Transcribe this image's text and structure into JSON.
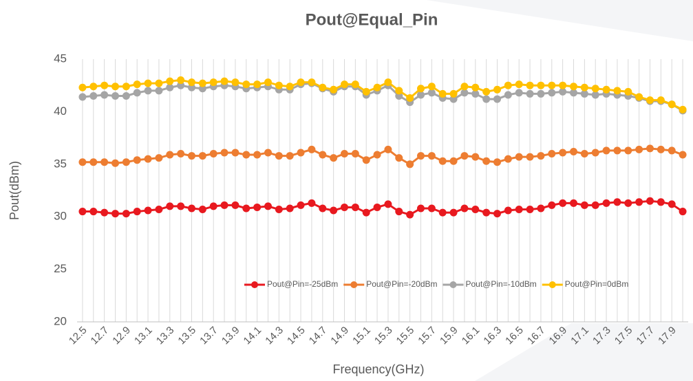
{
  "chart_data": {
    "type": "line",
    "title": "Pout@Equal_Pin",
    "x_label": "Frequency(GHz)",
    "y_label": "Pout(dBm)",
    "categories": [
      "12.5",
      null,
      "12.7",
      null,
      "12.9",
      null,
      "13.1",
      null,
      "13.3",
      null,
      "13.5",
      null,
      "13.7",
      null,
      "13.9",
      null,
      "14.1",
      null,
      "14.3",
      null,
      "14.5",
      null,
      "14.7",
      null,
      "14.9",
      null,
      "15.1",
      null,
      "15.3",
      null,
      "15.5",
      null,
      "15.7",
      null,
      "15.9",
      null,
      "16.1",
      null,
      "16.3",
      null,
      "16.5",
      null,
      "16.7",
      null,
      "16.9",
      null,
      "17.1",
      null,
      "17.3",
      null,
      "17.5",
      null,
      "17.7",
      null,
      "17.9",
      null
    ],
    "ylim": [
      20,
      45
    ],
    "yticks": [
      20,
      25,
      30,
      35,
      40,
      45
    ],
    "legend": "lower right",
    "series": [
      {
        "name": "Pout@Pin=-25dBm",
        "color": "#e8191f",
        "values": [
          30.5,
          30.5,
          30.4,
          30.3,
          30.3,
          30.5,
          30.6,
          30.7,
          31.0,
          31.0,
          30.8,
          30.7,
          31.0,
          31.1,
          31.1,
          30.8,
          30.9,
          31.0,
          30.7,
          30.8,
          31.1,
          31.3,
          30.8,
          30.6,
          30.9,
          30.9,
          30.4,
          30.9,
          31.2,
          30.5,
          30.2,
          30.8,
          30.8,
          30.4,
          30.4,
          30.8,
          30.7,
          30.4,
          30.3,
          30.6,
          30.7,
          30.7,
          30.8,
          31.1,
          31.3,
          31.3,
          31.1,
          31.1,
          31.3,
          31.4,
          31.3,
          31.4,
          31.5,
          31.4,
          31.2,
          30.5
        ]
      },
      {
        "name": "Pout@Pin=-20dBm",
        "color": "#ed7d31",
        "values": [
          35.2,
          35.2,
          35.2,
          35.1,
          35.2,
          35.4,
          35.5,
          35.6,
          35.9,
          36.0,
          35.8,
          35.8,
          36.0,
          36.1,
          36.1,
          35.9,
          35.9,
          36.1,
          35.8,
          35.8,
          36.1,
          36.4,
          35.9,
          35.6,
          36.0,
          36.0,
          35.4,
          35.9,
          36.4,
          35.6,
          35.0,
          35.8,
          35.8,
          35.3,
          35.3,
          35.8,
          35.7,
          35.3,
          35.2,
          35.5,
          35.7,
          35.7,
          35.8,
          36.0,
          36.1,
          36.2,
          36.0,
          36.1,
          36.3,
          36.3,
          36.3,
          36.4,
          36.5,
          36.4,
          36.3,
          35.9
        ]
      },
      {
        "name": "Pout@Pin=-10dBm",
        "color": "#a5a5a5",
        "values": [
          41.4,
          41.5,
          41.6,
          41.5,
          41.5,
          41.8,
          42.0,
          42.0,
          42.3,
          42.5,
          42.3,
          42.2,
          42.4,
          42.5,
          42.4,
          42.2,
          42.3,
          42.4,
          42.1,
          42.1,
          42.6,
          42.7,
          42.2,
          41.9,
          42.4,
          42.4,
          41.6,
          42.0,
          42.5,
          41.5,
          40.9,
          41.6,
          41.8,
          41.3,
          41.2,
          41.8,
          41.7,
          41.2,
          41.2,
          41.6,
          41.8,
          41.7,
          41.7,
          41.8,
          41.9,
          41.8,
          41.7,
          41.6,
          41.7,
          41.6,
          41.5,
          41.3,
          41.0,
          41.0,
          40.7,
          40.1
        ]
      },
      {
        "name": "Pout@Pin=0dBm",
        "color": "#ffc000",
        "values": [
          42.3,
          42.4,
          42.5,
          42.4,
          42.4,
          42.6,
          42.7,
          42.7,
          42.9,
          43.0,
          42.8,
          42.7,
          42.8,
          42.9,
          42.8,
          42.6,
          42.6,
          42.8,
          42.5,
          42.4,
          42.8,
          42.8,
          42.3,
          42.1,
          42.6,
          42.6,
          41.9,
          42.3,
          42.8,
          42.0,
          41.3,
          42.2,
          42.4,
          41.7,
          41.7,
          42.4,
          42.3,
          41.9,
          42.1,
          42.5,
          42.6,
          42.5,
          42.5,
          42.5,
          42.5,
          42.4,
          42.3,
          42.2,
          42.1,
          42.0,
          41.9,
          41.4,
          41.1,
          41.1,
          40.7,
          40.2
        ]
      }
    ]
  }
}
